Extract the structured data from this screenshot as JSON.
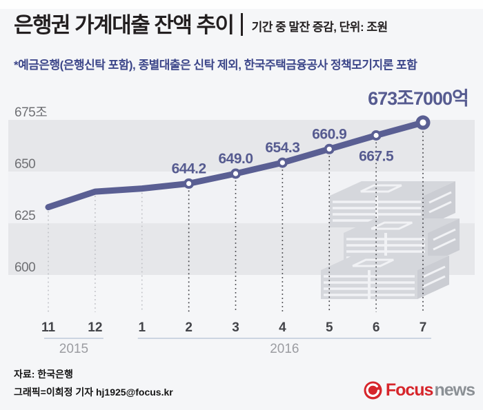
{
  "header": {
    "title": "은행권 가계대출 잔액 추이",
    "subtitle": "기간 중 말잔 증감, 단위: 조원",
    "note": "*예금은행(은행신탁 포함), 종별대출은 신탁 제외, 한국주택금융공사 정책모기지론 포함"
  },
  "chart_data": {
    "type": "line",
    "title": "은행권 가계대출 잔액 추이",
    "subtitle": "기간 중 말잔 증감",
    "unit": "조원",
    "ylim": [
      595,
      680
    ],
    "grid": "horizontal-bands",
    "legend": "none",
    "y_ticks": [
      {
        "label": "675조",
        "value": 675
      },
      {
        "label": "650",
        "value": 650
      },
      {
        "label": "625",
        "value": 625
      },
      {
        "label": "600",
        "value": 600
      }
    ],
    "points": [
      {
        "x": "11",
        "value": 632.8,
        "estimated": true,
        "label": null,
        "label_pos": null
      },
      {
        "x": "12",
        "value": 640.3,
        "estimated": true,
        "label": null,
        "label_pos": null
      },
      {
        "x": "1",
        "value": 641.8,
        "estimated": true,
        "label": null,
        "label_pos": null
      },
      {
        "x": "2",
        "value": 644.2,
        "estimated": false,
        "label": "644.2",
        "label_pos": "above"
      },
      {
        "x": "3",
        "value": 649.0,
        "estimated": false,
        "label": "649.0",
        "label_pos": "above"
      },
      {
        "x": "4",
        "value": 654.3,
        "estimated": false,
        "label": "654.3",
        "label_pos": "above"
      },
      {
        "x": "5",
        "value": 660.9,
        "estimated": false,
        "label": "660.9",
        "label_pos": "above"
      },
      {
        "x": "6",
        "value": 667.5,
        "estimated": false,
        "label": "667.5",
        "label_pos": "below"
      },
      {
        "x": "7",
        "value": 673.7,
        "estimated": false,
        "label": "673조7000억",
        "label_pos": "top-big"
      }
    ],
    "x_groups": [
      {
        "label": "2015",
        "from": 0,
        "to": 1
      },
      {
        "label": "2016",
        "from": 2,
        "to": 8
      }
    ]
  },
  "footer": {
    "source": "자료: 한국은행",
    "credit": "그래픽=이희정 기자 hj1925@focus.kr",
    "logo": {
      "brand_primary": "Focus",
      "brand_secondary": "news"
    }
  },
  "colors": {
    "background": "#f5f6f8",
    "top_strip": "#fefefe",
    "band_gray": "#e6e7ea",
    "band_light": "#f1f2f5",
    "line": "#5a5f93",
    "value_label": "#565b90",
    "note_text": "#3d478a",
    "title_text": "#231f20",
    "dotted_dark": "#414146",
    "dotted_light": "#bfc0c5",
    "y_tick": "#6f7074",
    "x_tick": "#434449",
    "year_label": "#9b9ca1",
    "axis_line": "#ccd5e1",
    "footer_text": "#141414",
    "logo_red": "#d6252b",
    "logo_gray": "#8b9095",
    "watermark": "#d5d7dc",
    "watermark_dark": "#cbcdd3"
  }
}
